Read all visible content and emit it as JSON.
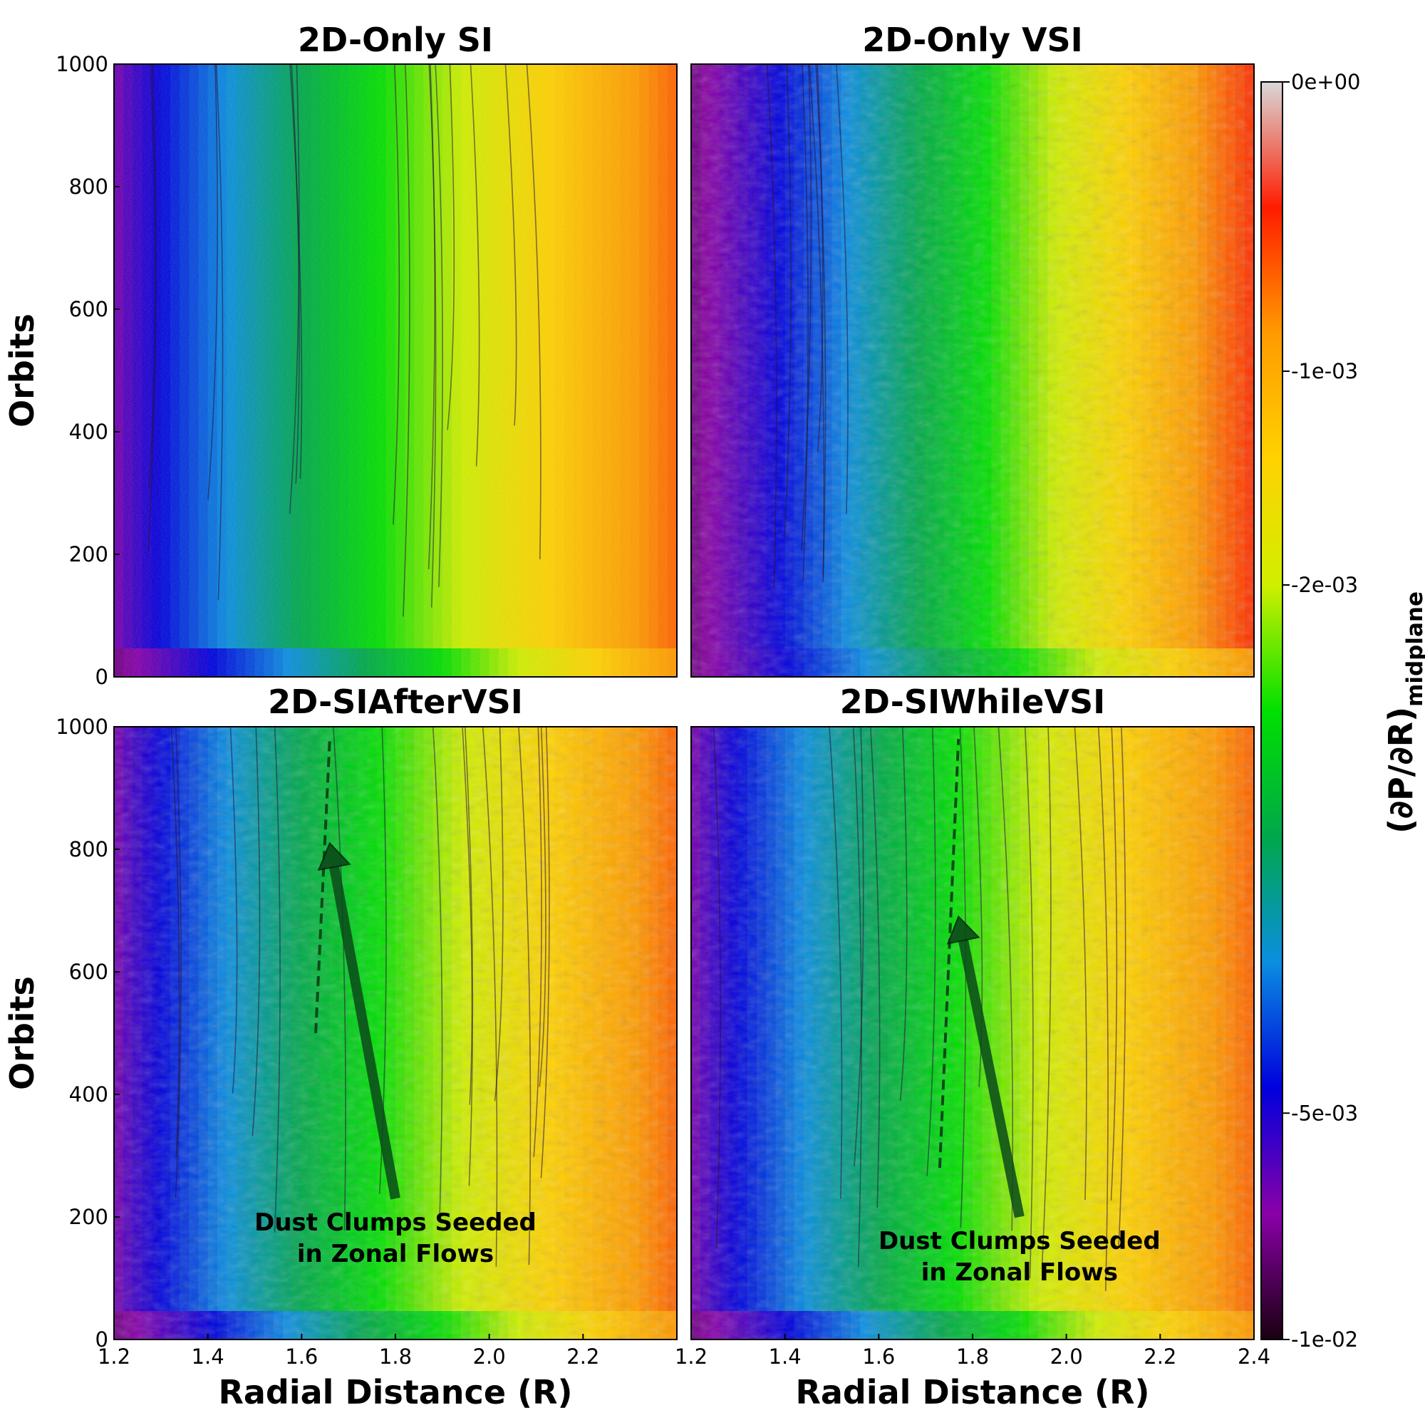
{
  "chart_data": [
    {
      "type": "heatmap",
      "title": "2D-Only SI",
      "xlabel": "",
      "ylabel": "Orbits",
      "xlim": [
        1.2,
        2.4
      ],
      "ylim": [
        0,
        1000
      ],
      "x_ticks": [],
      "y_ticks": [
        "0",
        "200",
        "400",
        "600",
        "800",
        "1000"
      ],
      "annotation": null
    },
    {
      "type": "heatmap",
      "title": "2D-Only VSI",
      "xlabel": "",
      "ylabel": "",
      "xlim": [
        1.2,
        2.4
      ],
      "ylim": [
        0,
        1000
      ],
      "x_ticks": [],
      "y_ticks": [],
      "annotation": null
    },
    {
      "type": "heatmap",
      "title": "2D-SIAfterVSI",
      "xlabel": "Radial Distance (R)",
      "ylabel": "Orbits",
      "xlim": [
        1.2,
        2.4
      ],
      "ylim": [
        0,
        1000
      ],
      "x_ticks": [
        "1.2",
        "1.4",
        "1.6",
        "1.8",
        "2.0",
        "2.2"
      ],
      "y_ticks": [
        "0",
        "200",
        "400",
        "600",
        "800",
        "1000"
      ],
      "annotation": {
        "lines": [
          "Dust Clumps Seeded",
          "in Zonal Flows"
        ],
        "arrow_from": [
          1.8,
          230
        ],
        "arrow_to": [
          1.66,
          810
        ],
        "dashed_line": [
          [
            1.63,
            500
          ],
          [
            1.66,
            980
          ]
        ]
      }
    },
    {
      "type": "heatmap",
      "title": "2D-SIWhileVSI",
      "xlabel": "Radial Distance (R)",
      "ylabel": "",
      "xlim": [
        1.2,
        2.4
      ],
      "ylim": [
        0,
        1000
      ],
      "x_ticks": [
        "1.2",
        "1.4",
        "1.6",
        "1.8",
        "2.0",
        "2.2",
        "2.4"
      ],
      "y_ticks": [],
      "annotation": {
        "lines": [
          "Dust Clumps Seeded",
          "in Zonal Flows"
        ],
        "arrow_from": [
          1.9,
          200
        ],
        "arrow_to": [
          1.77,
          690
        ],
        "dashed_line": [
          [
            1.73,
            280
          ],
          [
            1.77,
            980
          ]
        ]
      }
    }
  ],
  "colorbar": {
    "label_main": "(∂P/∂R)",
    "label_sub": "midplane",
    "tick_labels": [
      "0e+00",
      "-1e-03",
      "-2e-03",
      "-5e-03",
      "-1e-02"
    ],
    "tick_values": [
      0,
      -0.001,
      -0.002,
      -0.005,
      -0.01
    ],
    "colors": [
      "#1a0010",
      "#8a00a8",
      "#0000dd",
      "#0a8ee0",
      "#00a84a",
      "#00e000",
      "#d0ef00",
      "#ffd200",
      "#ff9b00",
      "#ff1c00",
      "#d8d8d8"
    ]
  }
}
